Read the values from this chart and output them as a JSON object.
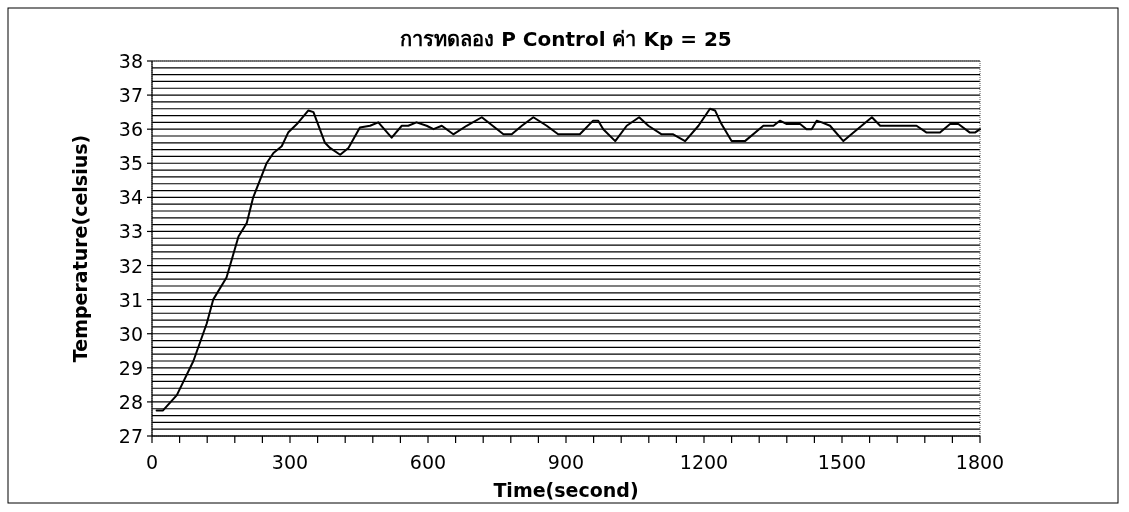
{
  "chart_data": {
    "type": "line",
    "title": "การทดลอง P Control ค่า Kp = 25",
    "xlabel": "Time(second)",
    "ylabel": "Temperature(celsius)",
    "x": [
      10,
      24,
      54,
      90,
      119,
      133,
      162,
      188,
      206,
      220,
      249,
      264,
      282,
      296,
      315,
      340,
      351,
      376,
      387,
      409,
      427,
      452,
      474,
      492,
      521,
      543,
      557,
      575,
      597,
      612,
      630,
      655,
      684,
      717,
      764,
      782,
      804,
      829,
      858,
      883,
      930,
      959,
      970,
      981,
      1007,
      1032,
      1059,
      1079,
      1108,
      1133,
      1159,
      1188,
      1213,
      1224,
      1238,
      1260,
      1289,
      1329,
      1351,
      1365,
      1380,
      1409,
      1423,
      1434,
      1445,
      1456,
      1474,
      1503,
      1525,
      1565,
      1583,
      1662,
      1684,
      1713,
      1735,
      1753,
      1778,
      1789,
      1800
    ],
    "series": [
      {
        "color": "#000000",
        "values": [
          27.75,
          27.75,
          28.2,
          29.2,
          30.3,
          31.0,
          31.65,
          32.85,
          33.25,
          34.0,
          35.0,
          35.3,
          35.5,
          35.9,
          36.15,
          36.55,
          36.5,
          35.6,
          35.45,
          35.25,
          35.45,
          36.05,
          36.1,
          36.2,
          35.75,
          36.1,
          36.1,
          36.2,
          36.1,
          36.0,
          36.1,
          35.85,
          36.1,
          36.35,
          35.85,
          35.85,
          36.1,
          36.35,
          36.1,
          35.85,
          35.85,
          36.25,
          36.25,
          36.0,
          35.65,
          36.1,
          36.35,
          36.1,
          35.85,
          35.85,
          35.65,
          36.1,
          36.6,
          36.55,
          36.15,
          35.65,
          35.65,
          36.1,
          36.1,
          36.25,
          36.15,
          36.15,
          36.0,
          36.0,
          36.25,
          36.2,
          36.1,
          35.65,
          35.9,
          36.35,
          36.1,
          36.1,
          35.9,
          35.9,
          36.15,
          36.15,
          35.9,
          35.9,
          36.0
        ]
      }
    ],
    "xlim": [
      0,
      1800
    ],
    "ylim": [
      27,
      38
    ],
    "xticks": [
      0,
      {
        "value": 60,
        "label": null
      },
      {
        "value": 120,
        "label": null
      },
      {
        "value": 180,
        "label": null
      },
      {
        "value": 240,
        "label": null
      },
      300,
      {
        "value": 360,
        "label": null
      },
      {
        "value": 420,
        "label": null
      },
      {
        "value": 480,
        "label": null
      },
      {
        "value": 540,
        "label": null
      },
      600,
      {
        "value": 660,
        "label": null
      },
      {
        "value": 720,
        "label": null
      },
      {
        "value": 780,
        "label": null
      },
      {
        "value": 840,
        "label": null
      },
      900,
      {
        "value": 960,
        "label": null
      },
      {
        "value": 1020,
        "label": null
      },
      {
        "value": 1080,
        "label": null
      },
      {
        "value": 1140,
        "label": null
      },
      1200,
      {
        "value": 1260,
        "label": null
      },
      {
        "value": 1320,
        "label": null
      },
      {
        "value": 1380,
        "label": null
      },
      {
        "value": 1440,
        "label": null
      },
      1500,
      {
        "value": 1560,
        "label": null
      },
      {
        "value": 1620,
        "label": null
      },
      {
        "value": 1680,
        "label": null
      },
      {
        "value": 1740,
        "label": null
      },
      1800
    ],
    "yticks": [
      27,
      {
        "value": 27.2,
        "label": null
      },
      {
        "value": 27.4,
        "label": null
      },
      {
        "value": 27.6,
        "label": null
      },
      {
        "value": 27.8,
        "label": null
      },
      28,
      {
        "value": 28.2,
        "label": null
      },
      {
        "value": 28.4,
        "label": null
      },
      {
        "value": 28.6,
        "label": null
      },
      {
        "value": 28.8,
        "label": null
      },
      29,
      {
        "value": 29.2,
        "label": null
      },
      {
        "value": 29.4,
        "label": null
      },
      {
        "value": 29.6,
        "label": null
      },
      {
        "value": 29.8,
        "label": null
      },
      30,
      {
        "value": 30.2,
        "label": null
      },
      {
        "value": 30.4,
        "label": null
      },
      {
        "value": 30.6,
        "label": null
      },
      {
        "value": 30.8,
        "label": null
      },
      31,
      {
        "value": 31.2,
        "label": null
      },
      {
        "value": 31.4,
        "label": null
      },
      {
        "value": 31.6,
        "label": null
      },
      {
        "value": 31.8,
        "label": null
      },
      32,
      {
        "value": 32.2,
        "label": null
      },
      {
        "value": 32.4,
        "label": null
      },
      {
        "value": 32.6,
        "label": null
      },
      {
        "value": 32.8,
        "label": null
      },
      33,
      {
        "value": 33.2,
        "label": null
      },
      {
        "value": 33.4,
        "label": null
      },
      {
        "value": 33.6,
        "label": null
      },
      {
        "value": 33.8,
        "label": null
      },
      34,
      {
        "value": 34.2,
        "label": null
      },
      {
        "value": 34.4,
        "label": null
      },
      {
        "value": 34.6,
        "label": null
      },
      {
        "value": 34.8,
        "label": null
      },
      35,
      {
        "value": 35.2,
        "label": null
      },
      {
        "value": 35.4,
        "label": null
      },
      {
        "value": 35.6,
        "label": null
      },
      {
        "value": 35.8,
        "label": null
      },
      36,
      {
        "value": 36.2,
        "label": null
      },
      {
        "value": 36.4,
        "label": null
      },
      {
        "value": 36.6,
        "label": null
      },
      {
        "value": 36.8,
        "label": null
      },
      37,
      {
        "value": 37.2,
        "label": null
      },
      {
        "value": 37.4,
        "label": null
      },
      {
        "value": 37.6,
        "label": null
      },
      {
        "value": 37.8,
        "label": null
      },
      38
    ],
    "grid": "y",
    "marker": "none",
    "line_style": "solid"
  }
}
